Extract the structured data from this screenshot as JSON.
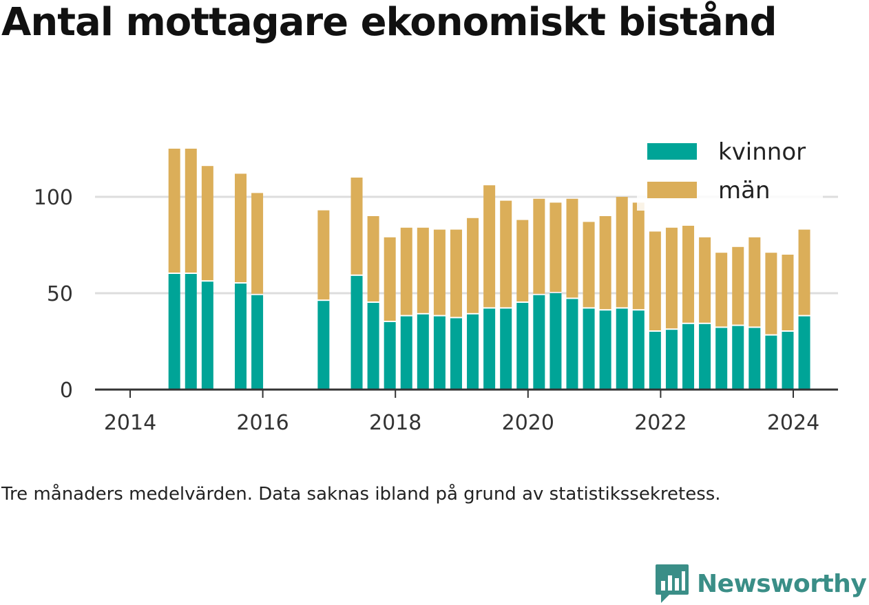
{
  "title": "Antal mottagare ekonomiskt bistånd",
  "caption": "Tre månaders medelvärden. Data saknas ibland på grund av statistikssekretess.",
  "brand": {
    "name": "Newsworthy",
    "icon": "newsworthy-logo-icon"
  },
  "colors": {
    "kvinnor": "#00a497",
    "man": "#dbae59",
    "grid": "#dddddd",
    "axis": "#333333"
  },
  "chart_data": {
    "type": "bar",
    "stacked": true,
    "x_ticks": [
      "2014",
      "2016",
      "2018",
      "2020",
      "2022",
      "2024"
    ],
    "y_ticks": [
      "0",
      "50",
      "100"
    ],
    "ylim": [
      0,
      125
    ],
    "legend": {
      "placement": "top-right"
    },
    "grid": true,
    "x": [
      "2014-09",
      "2014-12",
      "2015-03",
      "2015-09",
      "2015-12",
      "2016-12",
      "2017-06",
      "2017-09",
      "2017-12",
      "2018-03",
      "2018-06",
      "2018-09",
      "2018-12",
      "2019-03",
      "2019-06",
      "2019-09",
      "2019-12",
      "2020-03",
      "2020-06",
      "2020-09",
      "2020-12",
      "2021-03",
      "2021-06",
      "2021-09",
      "2021-12",
      "2022-03",
      "2022-06",
      "2022-09",
      "2022-12",
      "2023-03",
      "2023-06",
      "2023-09",
      "2023-12",
      "2024-03"
    ],
    "series": [
      {
        "name": "kvinnor",
        "values": [
          60,
          60,
          56,
          55,
          49,
          46,
          59,
          45,
          35,
          38,
          39,
          38,
          37,
          39,
          42,
          42,
          45,
          49,
          50,
          47,
          42,
          41,
          42,
          41,
          30,
          31,
          34,
          34,
          32,
          33,
          32,
          28,
          30,
          38
        ]
      },
      {
        "name": "män",
        "values": [
          65,
          65,
          60,
          57,
          53,
          47,
          51,
          45,
          44,
          46,
          45,
          45,
          46,
          50,
          64,
          56,
          43,
          50,
          47,
          52,
          45,
          49,
          58,
          56,
          52,
          53,
          51,
          45,
          39,
          41,
          47,
          43,
          40,
          45
        ]
      }
    ]
  }
}
